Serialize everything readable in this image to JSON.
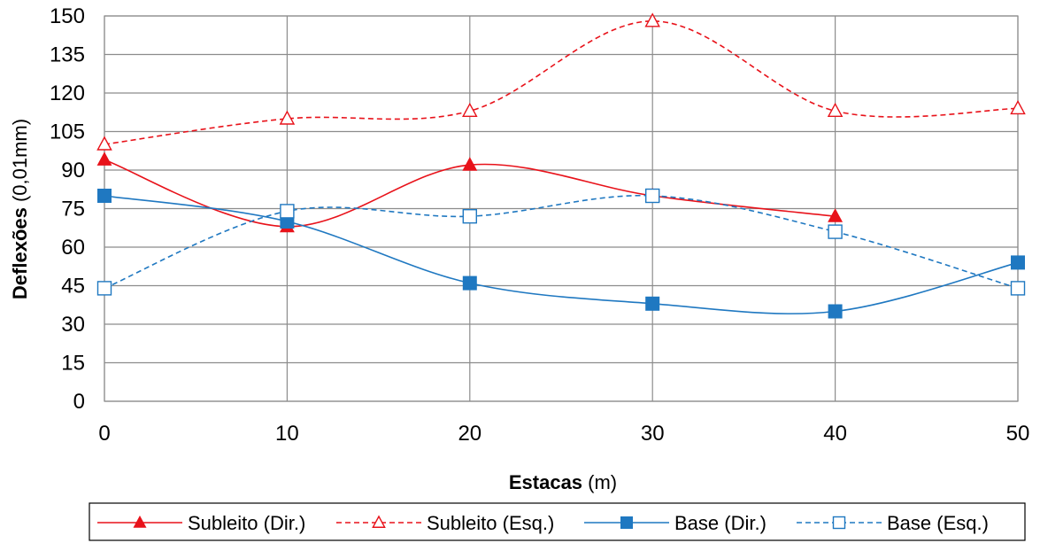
{
  "chart_data": {
    "type": "line",
    "title": "",
    "xlabel": {
      "bold": "Estacas",
      "normal": " (m)"
    },
    "ylabel": {
      "bold": "Deflexões",
      "normal": " (0,01mm)"
    },
    "xlim": [
      0,
      50
    ],
    "ylim": [
      0,
      150
    ],
    "xticks": [
      0,
      10,
      20,
      30,
      40,
      50
    ],
    "yticks": [
      0,
      15,
      30,
      45,
      60,
      75,
      90,
      105,
      120,
      135,
      150
    ],
    "grid": true,
    "smooth": true,
    "legend_position": "bottom",
    "series": [
      {
        "name": "Subleito (Dir.)",
        "color": "#e8121a",
        "dash": "solid",
        "marker": "triangle",
        "filled": true,
        "x": [
          0,
          10,
          20,
          30,
          40
        ],
        "y": [
          94,
          68,
          92,
          80,
          72
        ]
      },
      {
        "name": "Subleito (Esq.)",
        "color": "#e8121a",
        "dash": "dashed",
        "marker": "triangle",
        "filled": false,
        "x": [
          0,
          10,
          20,
          30,
          40,
          50
        ],
        "y": [
          100,
          110,
          113,
          148,
          113,
          114
        ]
      },
      {
        "name": "Base (Dir.)",
        "color": "#1f78c1",
        "dash": "solid",
        "marker": "square",
        "filled": true,
        "x": [
          0,
          10,
          20,
          30,
          40,
          50
        ],
        "y": [
          80,
          70,
          46,
          38,
          35,
          54
        ]
      },
      {
        "name": "Base (Esq.)",
        "color": "#1f78c1",
        "dash": "dashed",
        "marker": "square",
        "filled": false,
        "x": [
          0,
          10,
          20,
          30,
          40,
          50
        ],
        "y": [
          44,
          74,
          72,
          80,
          66,
          44
        ]
      }
    ]
  }
}
